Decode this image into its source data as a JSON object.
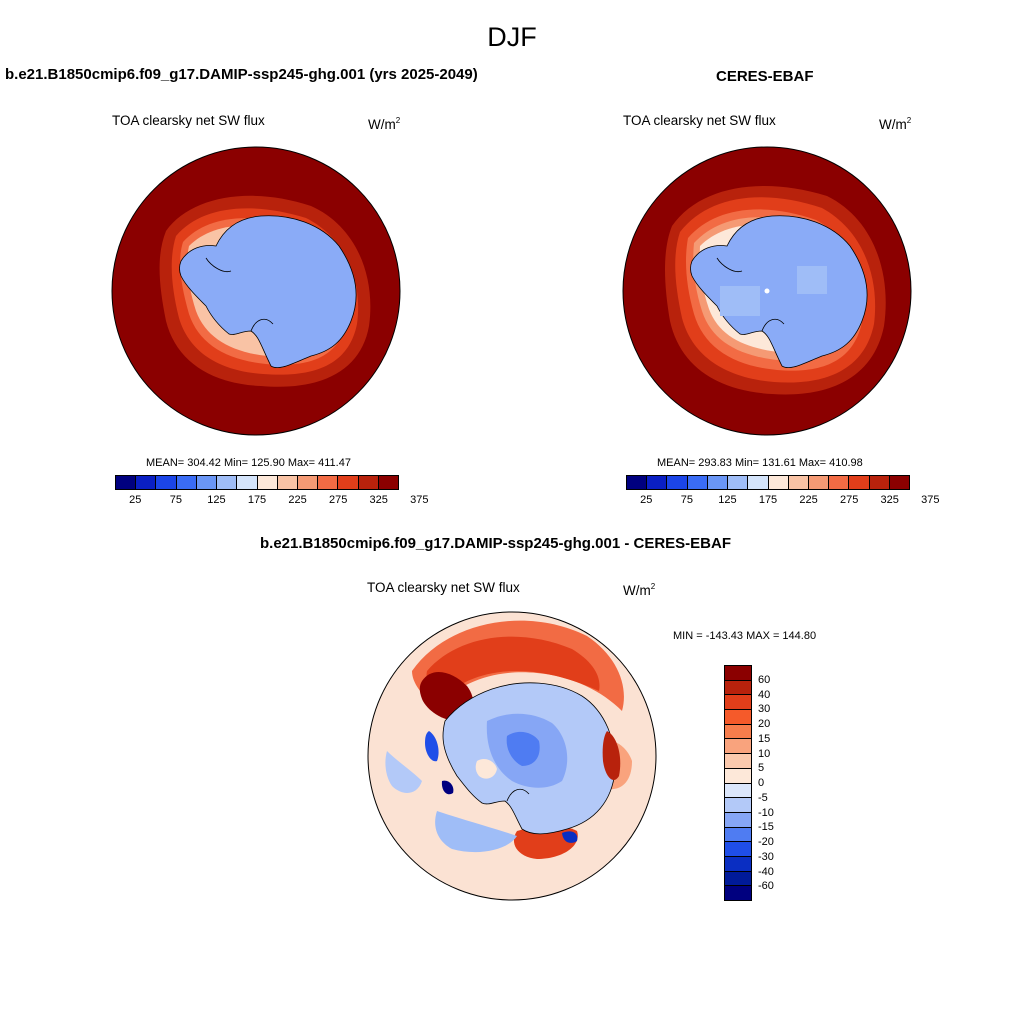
{
  "figure_title": "DJF",
  "panels": [
    {
      "title": "b.e21.B1850cmip6.f09_g17.DAMIP-ssp245-ghg.001 (yrs 2025-2049)",
      "variable": "TOA clearsky net SW flux",
      "units_base": "W/m",
      "units_exp": "2",
      "stats": "MEAN= 304.42  Min= 125.90  Max= 411.47",
      "colorbar_ticks": [
        "25",
        "75",
        "125",
        "175",
        "225",
        "275",
        "325",
        "375"
      ]
    },
    {
      "title": "CERES-EBAF",
      "variable": "TOA clearsky net SW flux",
      "units_base": "W/m",
      "units_exp": "2",
      "stats": "MEAN= 293.83  Min= 131.61  Max= 410.98",
      "colorbar_ticks": [
        "25",
        "75",
        "125",
        "175",
        "225",
        "275",
        "325",
        "375"
      ]
    },
    {
      "title": "b.e21.B1850cmip6.f09_g17.DAMIP-ssp245-ghg.001 - CERES-EBAF",
      "variable": "TOA clearsky net SW flux",
      "units_base": "W/m",
      "units_exp": "2",
      "stats": "MIN = -143.43 MAX = 144.80",
      "colorbar_ticks": [
        "60",
        "40",
        "30",
        "20",
        "15",
        "10",
        "5",
        "0",
        "-5",
        "-10",
        "-15",
        "-20",
        "-30",
        "-40",
        "-60"
      ]
    }
  ],
  "colors": {
    "sequential": [
      "#00007f",
      "#0a1fc4",
      "#1b45e8",
      "#3a6cf5",
      "#6a96f6",
      "#9fbdf7",
      "#d4e4fb",
      "#fde8d9",
      "#f9c3a5",
      "#f59a74",
      "#f26b44",
      "#e13e1a",
      "#b8220c",
      "#8b0000"
    ],
    "diverging": [
      "#8b0000",
      "#b8220c",
      "#e13e1a",
      "#f55a2a",
      "#f77d4c",
      "#f9a37d",
      "#fbc9ad",
      "#fde8d9",
      "#dbe6fb",
      "#b3c9f8",
      "#86a6f5",
      "#4f7cf2",
      "#1f4ee8",
      "#0a2ec2",
      "#001a99",
      "#00007f"
    ],
    "ocean_high": "#8b0000",
    "ice_blue": "#8aabf7",
    "diff_background": "#fbe2d3"
  }
}
